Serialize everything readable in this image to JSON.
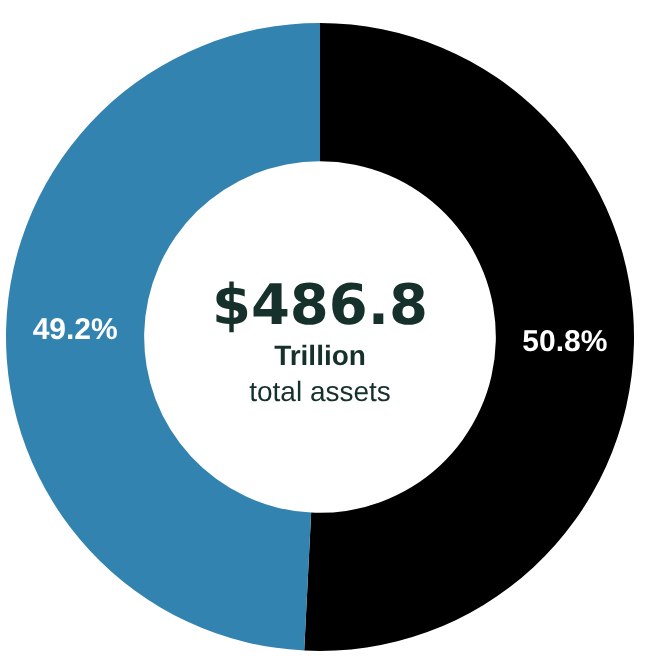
{
  "chart_data": {
    "type": "donut",
    "categories": [
      null,
      null
    ],
    "values": [
      50.8,
      49.2
    ],
    "colors": [
      "#000000",
      "#3383b0"
    ],
    "value_labels": [
      "50.8%",
      "49.2%"
    ],
    "annotations": [
      "$486.8",
      "Trillion",
      "total assets"
    ]
  }
}
